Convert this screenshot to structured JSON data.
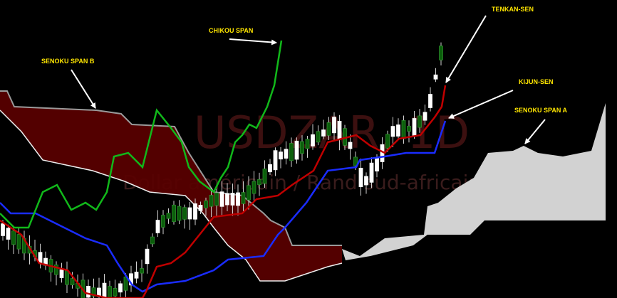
{
  "watermark": {
    "symbol": "USDZAR, 1D",
    "description": "Dollar américain / Rand sud-africain"
  },
  "annotations": {
    "chikou": "CHIKOU SPAN",
    "tenkan": "TENKAN-SEN",
    "kijun": "KIJUN-SEN",
    "span_a": "SENOKU SPAN A",
    "span_b": "SENOKU SPAN B"
  }
}
